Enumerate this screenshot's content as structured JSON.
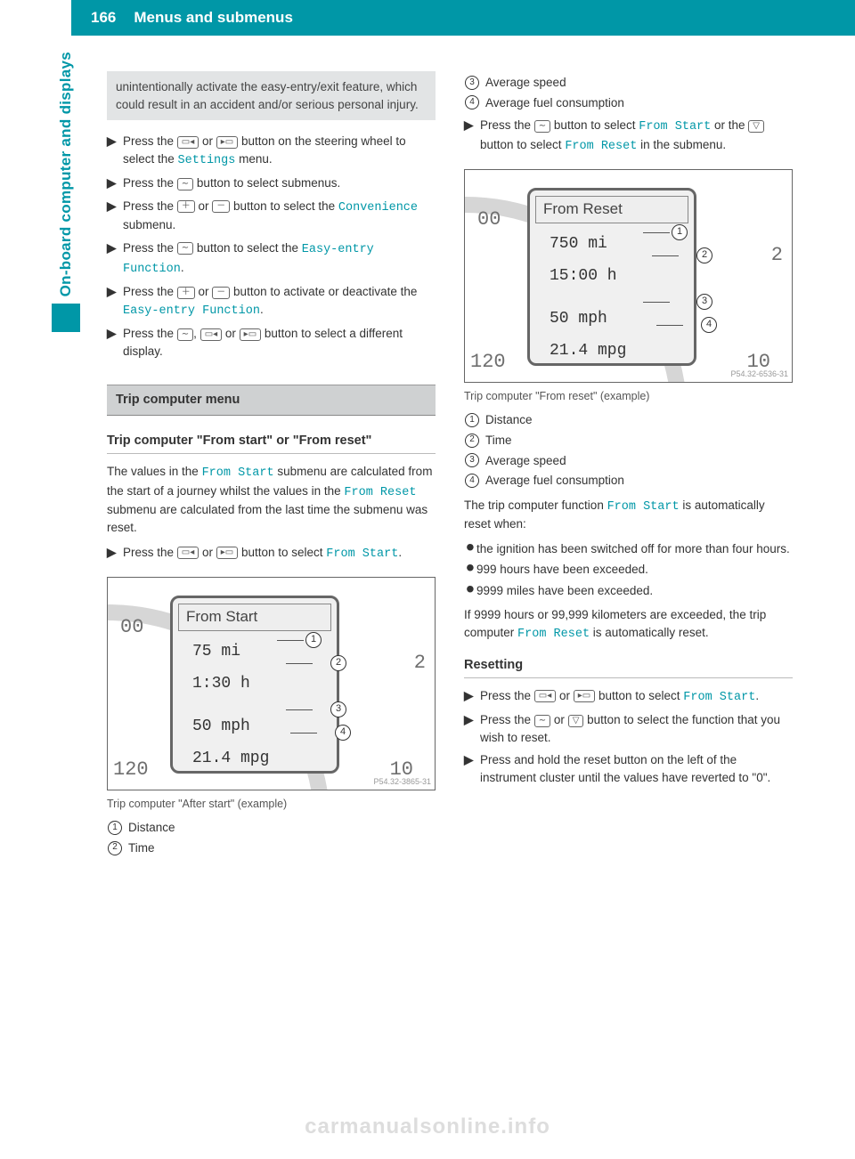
{
  "header": {
    "page_number": "166",
    "title": "Menus and submenus"
  },
  "side_tab": "On-board computer and displays",
  "icons": {
    "left_page": "▭◂",
    "right_page": "▸▭",
    "scroll": "∼",
    "plus": "＋",
    "minus": "－",
    "back": "▽"
  },
  "left_col": {
    "notice": "unintentionally activate the easy-entry/exit feature, which could result in an accident and/or serious personal injury.",
    "steps_a": [
      {
        "pre": "Press the ",
        "icons": [
          "left_page",
          "right_page"
        ],
        "mid": " button on the steering wheel to select the ",
        "mono": "Settings",
        "post": " menu."
      },
      {
        "pre": "Press the ",
        "icons": [
          "scroll"
        ],
        "mid": " button to select submenus.",
        "mono": "",
        "post": ""
      },
      {
        "pre": "Press the ",
        "icons": [
          "plus",
          "minus"
        ],
        "mid": " button to select the ",
        "mono": "Convenience",
        "post": " submenu."
      },
      {
        "pre": "Press the ",
        "icons": [
          "scroll"
        ],
        "mid": " button to select the ",
        "mono": "Easy-entry Function",
        "post": "."
      },
      {
        "pre": "Press the ",
        "icons": [
          "plus",
          "minus"
        ],
        "mid": " button to activate or deactivate the ",
        "mono": "Easy-entry Function",
        "post": "."
      },
      {
        "pre": "Press the ",
        "icons": [
          "scroll",
          "left_page",
          "right_page"
        ],
        "mid": " button to select a different display.",
        "mono": "",
        "post": ""
      }
    ],
    "section_bar": "Trip computer menu",
    "sub_heading": "Trip computer \"From start\" or \"From reset\"",
    "body": {
      "p1a": "The values in the ",
      "p1m1": "From Start",
      "p1b": " submenu are calculated from the start of a journey whilst the values in the ",
      "p1m2": "From Reset",
      "p1c": " submenu are calculated from the last time the submenu was reset."
    },
    "step_b": {
      "pre": "Press the ",
      "icons": [
        "left_page",
        "right_page"
      ],
      "mid": " button to select ",
      "mono": "From Start",
      "post": "."
    },
    "fig1": {
      "title": "From Start",
      "rows": [
        "75 mi",
        "1:30 h",
        "50 mph",
        "21.4 mpg"
      ],
      "ticks": {
        "t1": "00",
        "t2": "2",
        "t3": "120",
        "t4": "10"
      },
      "id": "P54.32-3865-31",
      "caption": "Trip computer \"After start\" (example)"
    },
    "legend_a": [
      {
        "n": "1",
        "t": "Distance"
      },
      {
        "n": "2",
        "t": "Time"
      }
    ]
  },
  "right_col": {
    "legend_top": [
      {
        "n": "3",
        "t": "Average speed"
      },
      {
        "n": "4",
        "t": "Average fuel consumption"
      }
    ],
    "step_c": {
      "pre": "Press the ",
      "i1": "scroll",
      "mid1": " button to select ",
      "m1": "From Start",
      "mid2": " or the ",
      "i2": "back",
      "mid3": " button to select ",
      "m2": "From Reset",
      "post": " in the submenu."
    },
    "fig2": {
      "title": "From Reset",
      "rows": [
        "750 mi",
        "15:00 h",
        "50 mph",
        "21.4 mpg"
      ],
      "ticks": {
        "t1": "00",
        "t2": "2",
        "t3": "120",
        "t4": "10"
      },
      "id": "P54.32-6536-31",
      "caption": "Trip computer \"From reset\" (example)"
    },
    "legend_b": [
      {
        "n": "1",
        "t": "Distance"
      },
      {
        "n": "2",
        "t": "Time"
      },
      {
        "n": "3",
        "t": "Average speed"
      },
      {
        "n": "4",
        "t": "Average fuel consumption"
      }
    ],
    "body2": {
      "a": "The trip computer function ",
      "m": "From Start",
      "b": " is automatically reset when:"
    },
    "bullets": [
      "the ignition has been switched off for more than four hours.",
      "999 hours have been exceeded.",
      "9999 miles have been exceeded."
    ],
    "body3": {
      "a": "If 9999 hours or 99,999 kilometers are exceeded, the trip computer ",
      "m": "From Reset",
      "b": " is automatically reset."
    },
    "reset_heading": "Resetting",
    "reset_steps": [
      {
        "pre": "Press the ",
        "icons": [
          "left_page",
          "right_page"
        ],
        "mid": " button to select ",
        "mono": "From Start",
        "post": "."
      },
      {
        "pre": "Press the ",
        "icons": [
          "scroll",
          "back"
        ],
        "mid": " button to select the function that you wish to reset.",
        "mono": "",
        "post": ""
      },
      {
        "pre": "Press and hold the reset button on the left of the instrument cluster until the values have reverted to \"0\".",
        "icons": [],
        "mid": "",
        "mono": "",
        "post": ""
      }
    ]
  },
  "watermark": "carmanualsonline.info"
}
